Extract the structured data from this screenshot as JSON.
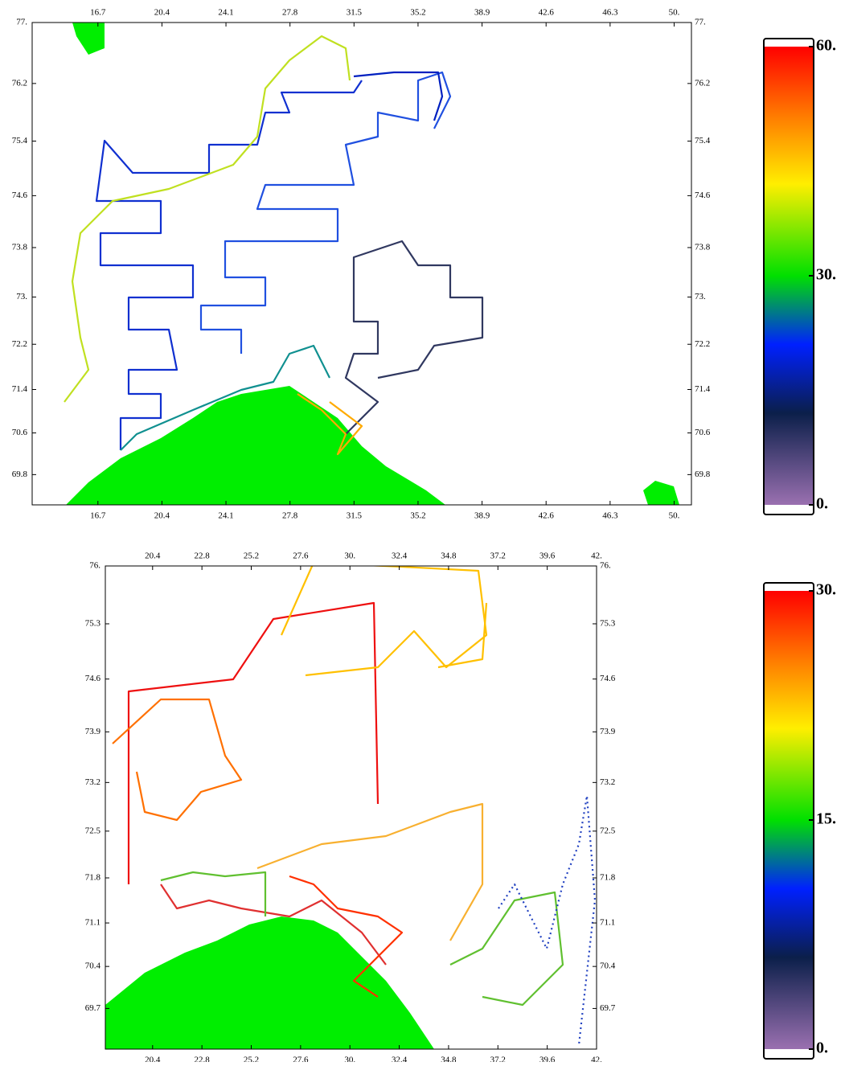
{
  "panels": [
    {
      "xlim": [
        12.9,
        51.0
      ],
      "ylim": [
        69.2,
        77.0
      ],
      "xticks": [
        16.7,
        20.4,
        24.1,
        27.8,
        31.5,
        35.2,
        38.9,
        42.6,
        46.3,
        {
          "value": 50,
          "label": "50."
        }
      ],
      "yticks": [
        {
          "value": 77,
          "label": "77."
        },
        76.2,
        75.4,
        74.6,
        73.8,
        {
          "value": 73,
          "label": "73."
        },
        72.2,
        71.4,
        70.6,
        69.8
      ],
      "colorbar": {
        "lim": [
          0,
          60
        ],
        "ticks": [
          {
            "value": 60,
            "label": "60."
          },
          {
            "value": 30,
            "label": "30."
          },
          {
            "value": 0,
            "label": "0."
          }
        ]
      }
    },
    {
      "xlim": [
        18.1,
        42.0
      ],
      "ylim": [
        69.0,
        76.0
      ],
      "xticks": [
        20.4,
        22.8,
        25.2,
        27.6,
        {
          "value": 30,
          "label": "30."
        },
        32.4,
        34.8,
        37.2,
        39.6,
        {
          "value": 42,
          "label": "42."
        }
      ],
      "yticks": [
        {
          "value": 76,
          "label": "76."
        },
        75.3,
        74.6,
        73.9,
        73.2,
        72.5,
        71.8,
        71.1,
        70.4,
        69.7
      ],
      "colorbar": {
        "lim": [
          0,
          30
        ],
        "ticks": [
          {
            "value": 30,
            "label": "30."
          },
          {
            "value": 15,
            "label": "15."
          },
          {
            "value": 0,
            "label": "0."
          }
        ]
      }
    }
  ]
}
